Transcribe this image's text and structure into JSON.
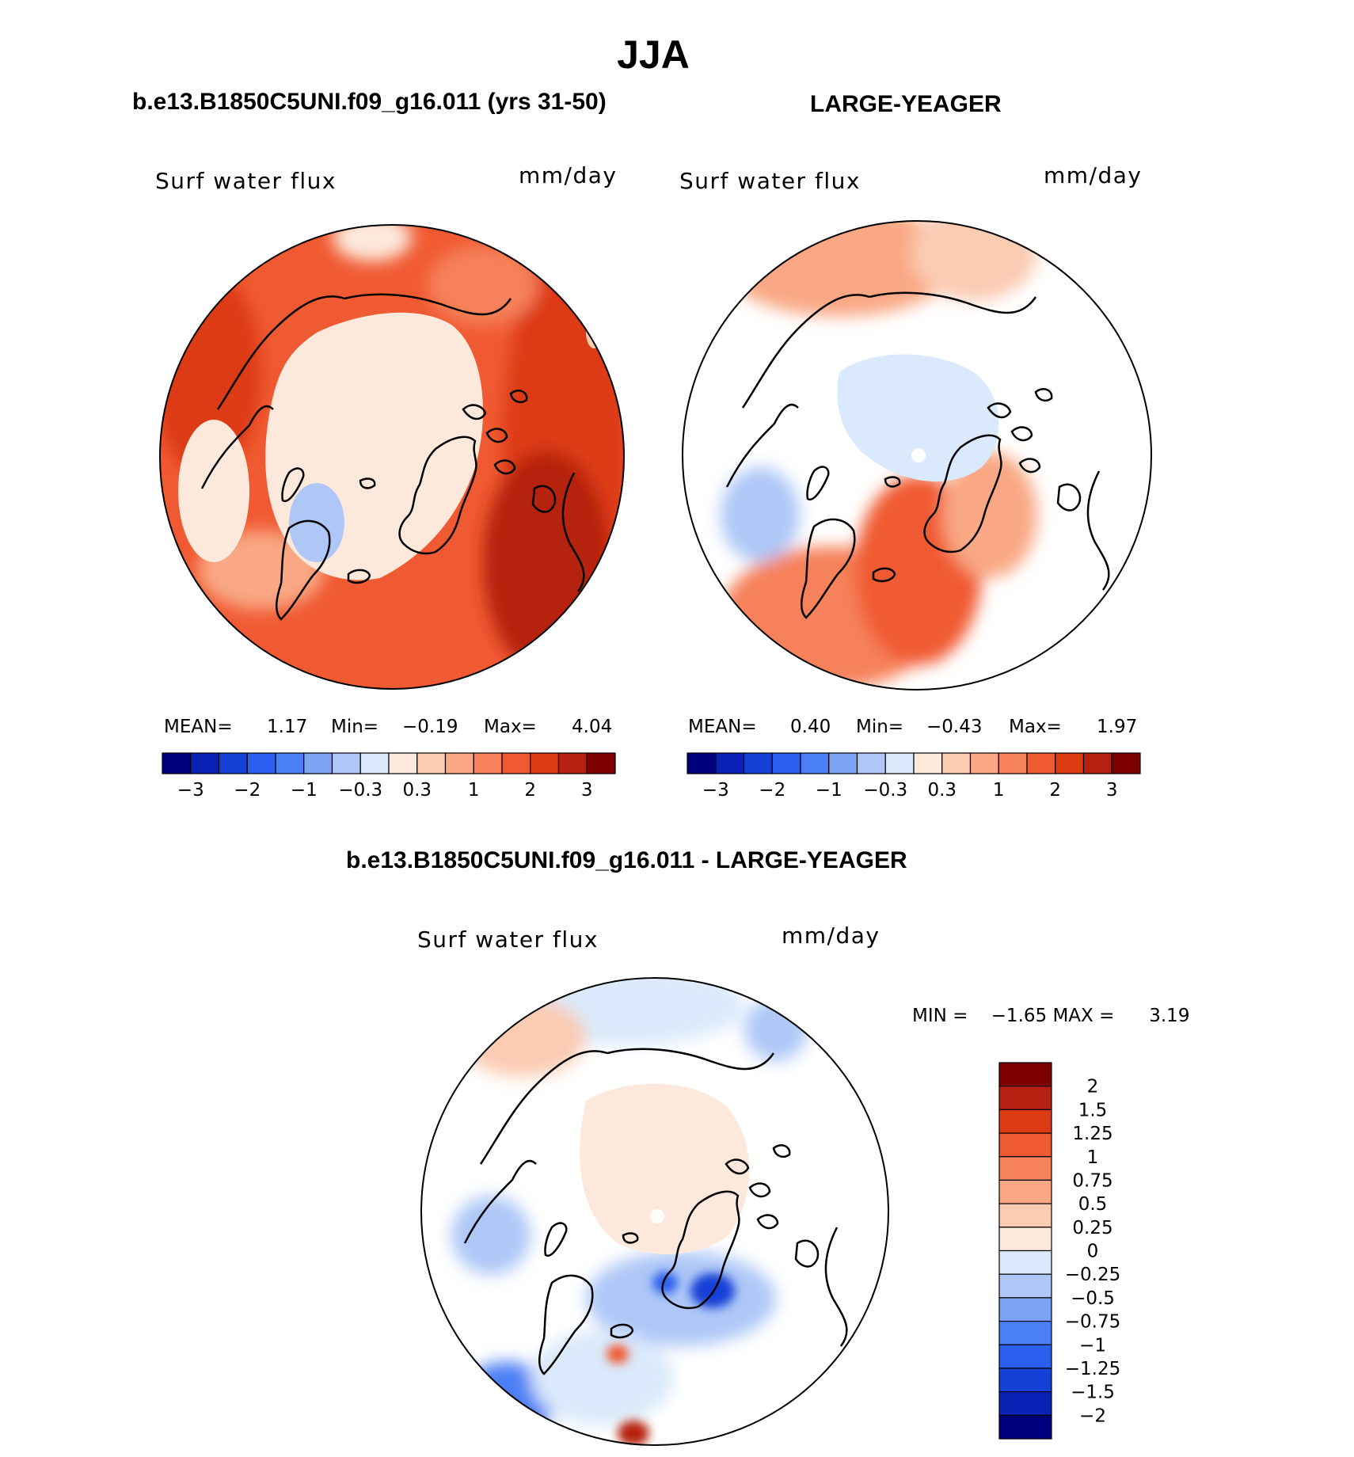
{
  "title": "JJA",
  "variable": "Surf water flux",
  "units": "mm/day",
  "panels": [
    {
      "case_title": "b.e13.B1850C5UNI.f09_g16.011 (yrs 31-50)",
      "mean_label": "MEAN=",
      "mean_value": "1.17",
      "min_label": "Min=",
      "min_value": "−0.19",
      "max_label": "Max=",
      "max_value": "4.04"
    },
    {
      "case_title": "LARGE-YEAGER",
      "mean_label": "MEAN=",
      "mean_value": "0.40",
      "min_label": "Min=",
      "min_value": "−0.43",
      "max_label": "Max=",
      "max_value": "1.97"
    },
    {
      "case_title": "b.e13.B1850C5UNI.f09_g16.011 - LARGE-YEAGER",
      "minmax_text": "MIN =    −1.65 MAX =      3.19"
    }
  ],
  "horizontal_colorbar": {
    "tick_labels": [
      "−3",
      "−2",
      "−1",
      "−0.3",
      "0.3",
      "1",
      "2",
      "3"
    ],
    "colors": [
      "#00007e",
      "#0a22b6",
      "#1541d6",
      "#2a5fef",
      "#4b7ff5",
      "#7da3f5",
      "#aec7f7",
      "#dae9fb",
      "#fde9dc",
      "#fbcbb2",
      "#f9a784",
      "#f6815a",
      "#f05a33",
      "#dd3b14",
      "#b52010",
      "#7e0000"
    ]
  },
  "vertical_colorbar": {
    "tick_labels": [
      "2",
      "1.5",
      "1.25",
      "1",
      "0.75",
      "0.5",
      "0.25",
      "0",
      "−0.25",
      "−0.5",
      "−0.75",
      "−1",
      "−1.25",
      "−1.5",
      "−2"
    ],
    "colors": [
      "#7e0000",
      "#b52010",
      "#dd3b14",
      "#f05a33",
      "#f6815a",
      "#f9a784",
      "#fbcbb2",
      "#fde9dc",
      "#dae9fb",
      "#aec7f7",
      "#7da3f5",
      "#4b7ff5",
      "#2a5fef",
      "#1541d6",
      "#0a22b6",
      "#00007e"
    ]
  },
  "chart_data": [
    {
      "type": "heatmap",
      "title": "b.e13.B1850C5UNI.f09_g16.011 (yrs 31-50)",
      "variable": "Surf water flux",
      "units": "mm/day",
      "mean": 1.17,
      "min": -0.19,
      "max": 4.04,
      "levels": [
        -3,
        -2,
        -1,
        -0.3,
        0.3,
        1,
        2,
        3
      ]
    },
    {
      "type": "heatmap",
      "title": "LARGE-YEAGER",
      "variable": "Surf water flux",
      "units": "mm/day",
      "mean": 0.4,
      "min": -0.43,
      "max": 1.97,
      "levels": [
        -3,
        -2,
        -1,
        -0.3,
        0.3,
        1,
        2,
        3
      ]
    },
    {
      "type": "heatmap",
      "title": "b.e13.B1850C5UNI.f09_g16.011 - LARGE-YEAGER",
      "variable": "Surf water flux",
      "units": "mm/day",
      "min": -1.65,
      "max": 3.19,
      "levels": [
        -2,
        -1.5,
        -1.25,
        -1,
        -0.75,
        -0.5,
        -0.25,
        0,
        0.25,
        0.5,
        0.75,
        1,
        1.25,
        1.5,
        2
      ]
    }
  ]
}
